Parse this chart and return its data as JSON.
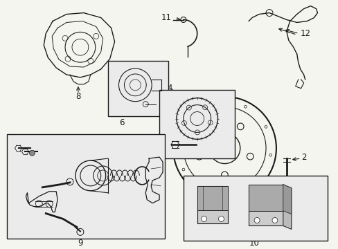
{
  "background_color": "#f5f5f0",
  "fig_width": 4.89,
  "fig_height": 3.6,
  "dpi": 100,
  "line_color": "#1a1a1a",
  "box_fill": "#ebebeb",
  "label_fontsize": 8.5,
  "label_fontsize_sm": 7.5
}
